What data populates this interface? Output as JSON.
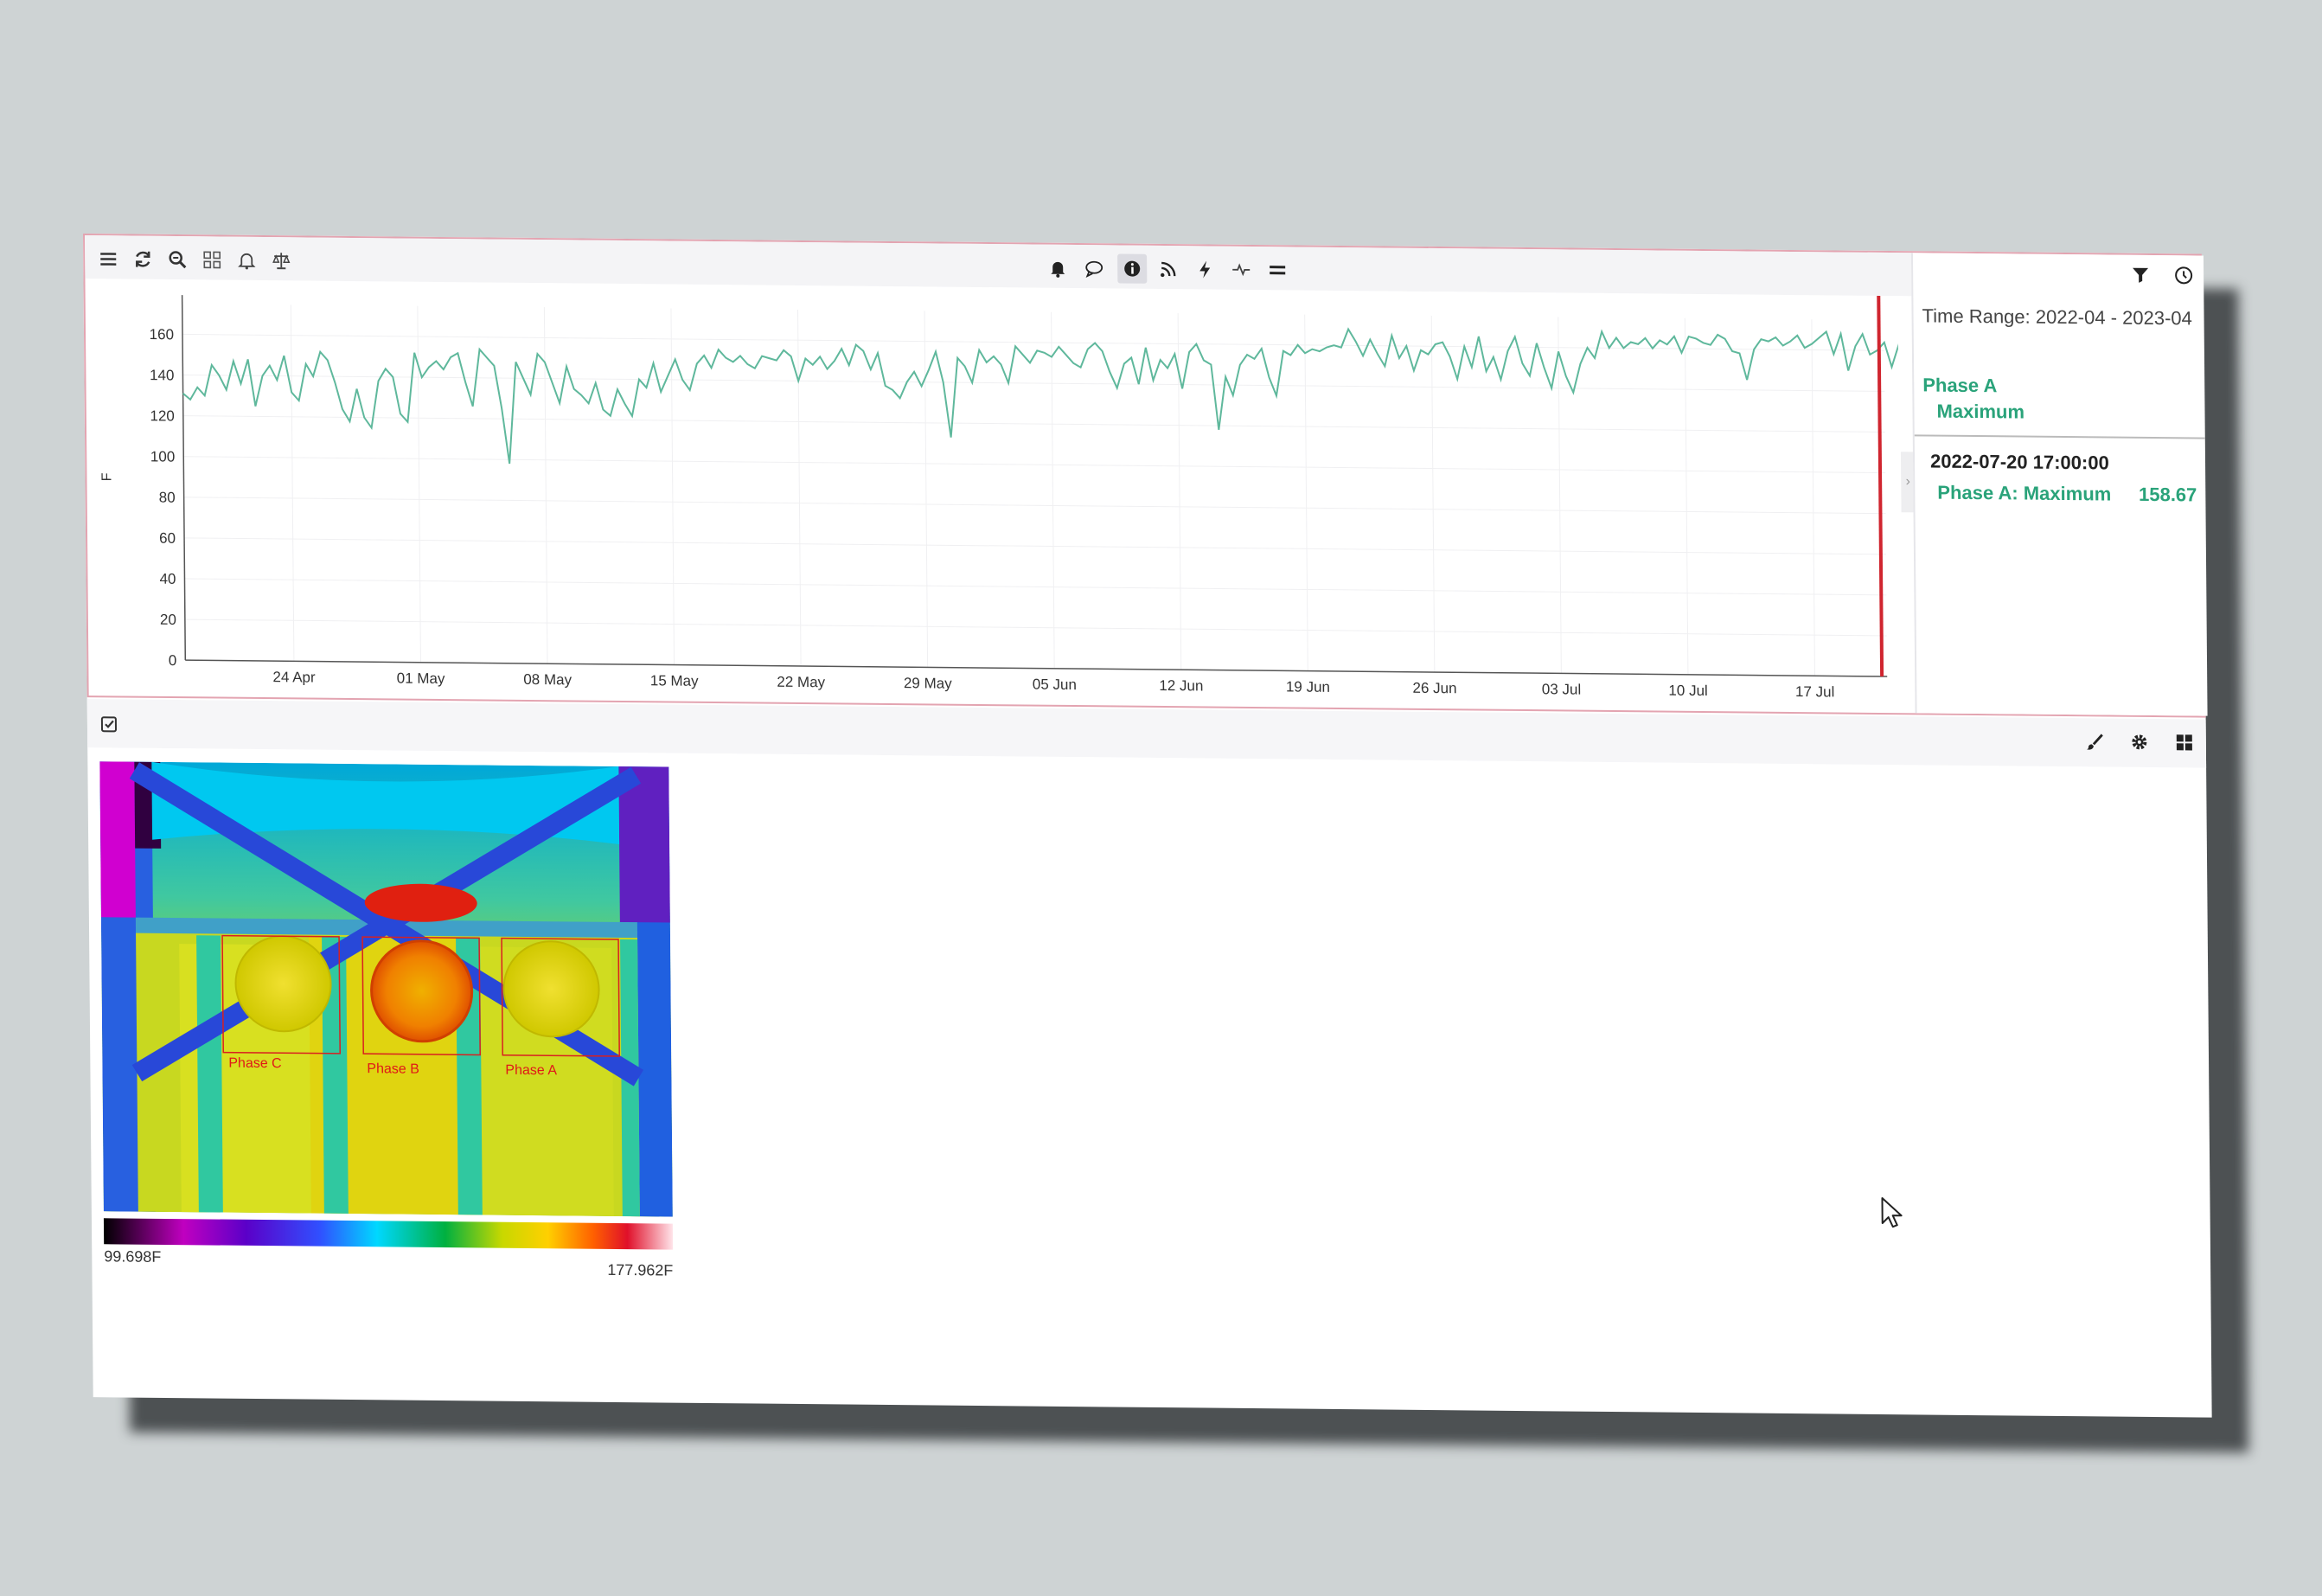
{
  "chart_toolbar": {
    "left_icons": [
      "menu-icon",
      "refresh-icon",
      "zoom-icon",
      "grid-icon",
      "bell-outline-icon",
      "scale-icon"
    ],
    "center_icons": [
      "bell-icon",
      "comment-icon",
      "info-icon",
      "rss-icon",
      "lightning-icon",
      "pulse-icon",
      "equals-icon"
    ]
  },
  "right_panel": {
    "icons": [
      "filter-icon",
      "clock-icon"
    ],
    "time_range": "Time Range: 2022-04 - 2023-04",
    "legend": {
      "series": "Phase A",
      "statistic": "Maximum"
    },
    "tooltip": {
      "time": "2022-07-20 17:00:00",
      "name": "Phase A: Maximum",
      "value": "158.67"
    }
  },
  "colors": {
    "series": "#5fb89c",
    "cursor_line": "#d0252f",
    "accent": "#2aa37a",
    "panel_border": "#e3a4b1"
  },
  "chart_data": {
    "type": "line",
    "xlabel": "",
    "ylabel": "F",
    "ylim": [
      0,
      175
    ],
    "yticks": [
      0,
      20,
      40,
      60,
      80,
      100,
      120,
      140,
      160
    ],
    "x_tick_labels": [
      "24 Apr",
      "01 May",
      "08 May",
      "15 May",
      "22 May",
      "29 May",
      "05 Jun",
      "12 Jun",
      "19 Jun",
      "26 Jun",
      "03 Jul",
      "10 Jul",
      "17 Jul"
    ],
    "x_range": [
      "2022-04-18",
      "2022-07-21"
    ],
    "cursor_date": "2022-07-20 17:00:00",
    "grid": true,
    "series": [
      {
        "name": "Phase A",
        "x_start": "2022-04-18",
        "step_days": 0.4,
        "values": [
          131,
          128,
          134,
          130,
          145,
          140,
          133,
          147,
          136,
          148,
          125,
          140,
          145,
          138,
          150,
          132,
          128,
          146,
          140,
          152,
          148,
          137,
          124,
          118,
          134,
          120,
          115,
          138,
          144,
          140,
          122,
          118,
          152,
          140,
          145,
          148,
          144,
          150,
          152,
          138,
          126,
          154,
          150,
          146,
          125,
          98,
          148,
          140,
          132,
          152,
          148,
          138,
          128,
          146,
          135,
          132,
          128,
          138,
          125,
          122,
          135,
          128,
          122,
          140,
          136,
          148,
          134,
          142,
          150,
          140,
          135,
          148,
          152,
          146,
          155,
          151,
          149,
          152,
          148,
          146,
          152,
          151,
          150,
          155,
          152,
          140,
          151,
          148,
          152,
          146,
          150,
          156,
          148,
          158,
          155,
          146,
          154,
          138,
          136,
          132,
          140,
          145,
          138,
          146,
          155,
          140,
          113,
          152,
          148,
          140,
          156,
          150,
          153,
          149,
          140,
          158,
          154,
          150,
          156,
          155,
          153,
          158,
          154,
          150,
          148,
          157,
          160,
          156,
          146,
          138,
          150,
          153,
          140,
          158,
          142,
          152,
          148,
          155,
          138,
          156,
          160,
          152,
          150,
          118,
          144,
          135,
          150,
          155,
          153,
          158,
          144,
          135,
          157,
          155,
          160,
          156,
          158,
          157,
          159,
          160,
          159,
          168,
          162,
          155,
          163,
          156,
          150,
          165,
          154,
          160,
          148,
          158,
          156,
          161,
          162,
          155,
          144,
          160,
          150,
          165,
          148,
          155,
          144,
          158,
          165,
          152,
          146,
          162,
          150,
          140,
          158,
          146,
          138,
          152,
          160,
          155,
          168,
          160,
          165,
          160,
          163,
          162,
          165,
          160,
          164,
          162,
          166,
          158,
          166,
          165,
          163,
          162,
          167,
          165,
          159,
          158,
          145,
          160,
          165,
          164,
          166,
          162,
          164,
          167,
          161,
          163,
          166,
          169,
          158,
          168,
          150,
          162,
          168,
          158,
          160,
          164,
          152,
          163,
          160,
          170,
          165,
          155,
          160,
          158.67
        ]
      }
    ]
  },
  "bottom_toolbar": {
    "left_icons": [
      "checkbox-icon"
    ],
    "right_icons": [
      "brush-icon",
      "settings-icon",
      "grid-layout-icon"
    ]
  },
  "thermal": {
    "regions": [
      "Phase C",
      "Phase B",
      "Phase A"
    ],
    "scale_min": "99.698F",
    "scale_max": "177.962F"
  }
}
